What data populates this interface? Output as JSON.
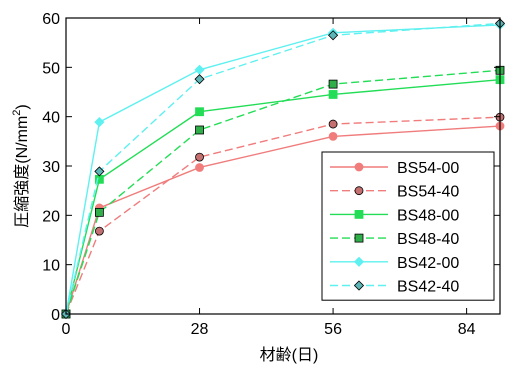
{
  "chart_data": {
    "type": "line",
    "xlabel": "材齢(日)",
    "ylabel": "圧縮強度(N/mm",
    "ylabel_sup": "2",
    "ylabel_tail": ")",
    "xlim": [
      0,
      91
    ],
    "ylim": [
      0,
      60
    ],
    "xticks": [
      0,
      28,
      56,
      84
    ],
    "yticks": [
      0,
      10,
      20,
      30,
      40,
      50,
      60
    ],
    "grid": false,
    "legend_position": "bottom-right",
    "series": [
      {
        "name": "BS54-00",
        "color": "#f07c7c",
        "dash": "solid",
        "marker": "circle",
        "marker_fill": "#f07c7c",
        "x": [
          0,
          7,
          28,
          56,
          91
        ],
        "y": [
          0,
          21.5,
          29.7,
          36.0,
          38.1
        ]
      },
      {
        "name": "BS54-40",
        "color": "#f07c7c",
        "dash": "dashed",
        "marker": "circle",
        "marker_fill": "#c47070",
        "x": [
          0,
          7,
          28,
          56,
          91
        ],
        "y": [
          0,
          16.8,
          31.8,
          38.5,
          39.9
        ]
      },
      {
        "name": "BS48-00",
        "color": "#22dd55",
        "dash": "solid",
        "marker": "square",
        "marker_fill": "#22dd55",
        "x": [
          0,
          7,
          28,
          56,
          91
        ],
        "y": [
          0,
          27.3,
          41.0,
          44.5,
          47.5
        ]
      },
      {
        "name": "BS48-40",
        "color": "#22dd55",
        "dash": "dashed",
        "marker": "square",
        "marker_fill": "#2fae4a",
        "x": [
          0,
          7,
          28,
          56,
          91
        ],
        "y": [
          0,
          20.6,
          37.3,
          46.6,
          49.4
        ]
      },
      {
        "name": "BS42-00",
        "color": "#5ff0f0",
        "dash": "solid",
        "marker": "diamond",
        "marker_fill": "#5ff0f0",
        "x": [
          0,
          7,
          28,
          56,
          91
        ],
        "y": [
          0,
          38.9,
          49.5,
          57.0,
          58.6
        ]
      },
      {
        "name": "BS42-40",
        "color": "#5ff0f0",
        "dash": "dashed",
        "marker": "diamond",
        "marker_fill": "#5fb5b5",
        "x": [
          0,
          7,
          28,
          56,
          91
        ],
        "y": [
          0,
          28.9,
          47.6,
          56.5,
          58.9
        ]
      }
    ]
  }
}
